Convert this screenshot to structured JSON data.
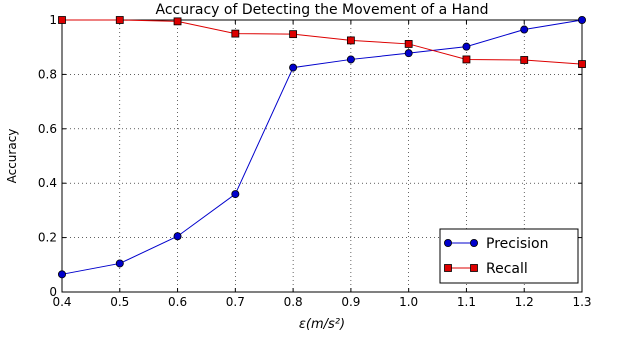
{
  "chart_data": {
    "type": "line",
    "title": "Accuracy of Detecting the Movement of a Hand",
    "xlabel": "ε(m/s²)",
    "ylabel": "Accuracy",
    "x": [
      0.4,
      0.5,
      0.6,
      0.7,
      0.8,
      0.9,
      1.0,
      1.1,
      1.2,
      1.3
    ],
    "xlim": [
      0.4,
      1.3
    ],
    "ylim": [
      0,
      1
    ],
    "x_ticks": [
      "0.4",
      "0.5",
      "0.6",
      "0.7",
      "0.8",
      "0.9",
      "1.0",
      "1.1",
      "1.2",
      "1.3"
    ],
    "y_ticks": [
      "0",
      "0.2",
      "0.4",
      "0.6",
      "0.8",
      "1"
    ],
    "grid": true,
    "legend_position": "bottom-right",
    "series": [
      {
        "name": "Precision",
        "color": "#0000cc",
        "marker": "circle",
        "values": [
          0.065,
          0.105,
          0.205,
          0.36,
          0.825,
          0.855,
          0.878,
          0.902,
          0.965,
          1.0
        ]
      },
      {
        "name": "Recall",
        "color": "#dd0000",
        "marker": "square",
        "values": [
          1.0,
          1.0,
          0.995,
          0.95,
          0.948,
          0.925,
          0.912,
          0.855,
          0.853,
          0.838
        ]
      }
    ]
  }
}
